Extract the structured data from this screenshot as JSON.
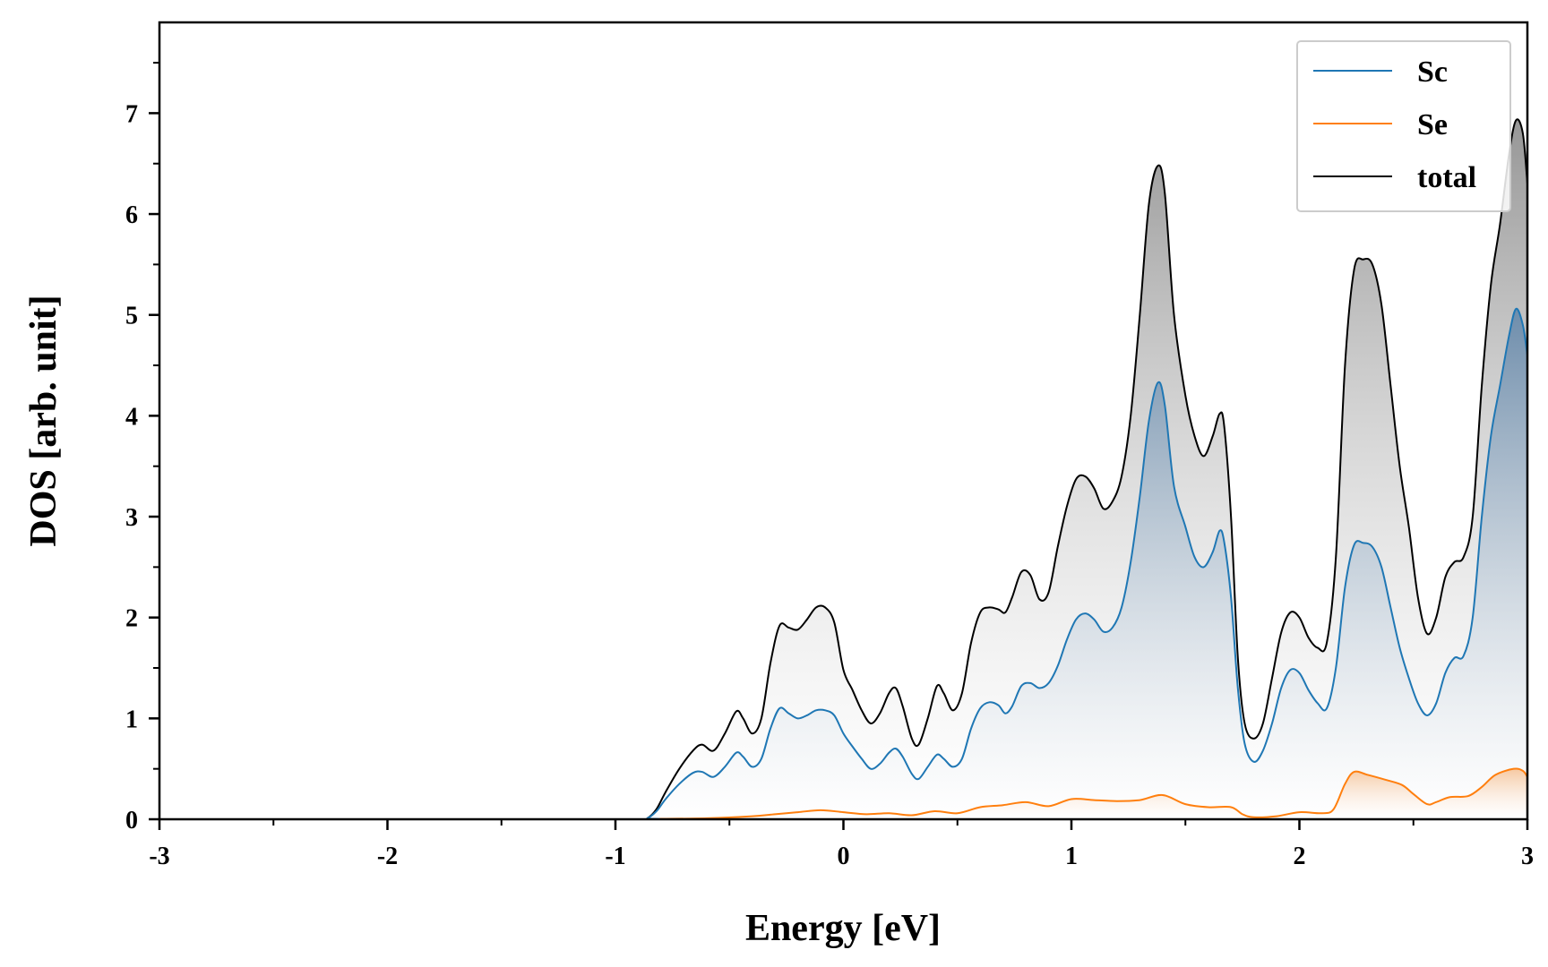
{
  "chart_data": {
    "type": "area",
    "title": "",
    "xlabel": "Energy [eV]",
    "ylabel": "DOS [arb. unit]",
    "xlim": [
      -3,
      3
    ],
    "ylim": [
      0,
      7.9
    ],
    "x_ticks": [
      -3,
      -2,
      -1,
      0,
      1,
      2,
      3
    ],
    "x_tick_labels": [
      "-3",
      "-2",
      "-1",
      "0",
      "1",
      "2",
      "3"
    ],
    "y_ticks": [
      0,
      1,
      2,
      3,
      4,
      5,
      6,
      7
    ],
    "y_tick_labels": [
      "0",
      "1",
      "2",
      "3",
      "4",
      "5",
      "6",
      "7"
    ],
    "grid": false,
    "legend_position": "top-right",
    "series": [
      {
        "name": "Sc",
        "color": "#1f77b4",
        "points": [
          [
            -3,
            0
          ],
          [
            -0.9,
            0
          ],
          [
            -0.86,
            0.01
          ],
          [
            -0.82,
            0.08
          ],
          [
            -0.78,
            0.2
          ],
          [
            -0.72,
            0.35
          ],
          [
            -0.66,
            0.46
          ],
          [
            -0.62,
            0.47
          ],
          [
            -0.57,
            0.42
          ],
          [
            -0.52,
            0.52
          ],
          [
            -0.47,
            0.66
          ],
          [
            -0.44,
            0.62
          ],
          [
            -0.4,
            0.52
          ],
          [
            -0.36,
            0.6
          ],
          [
            -0.32,
            0.9
          ],
          [
            -0.28,
            1.1
          ],
          [
            -0.24,
            1.05
          ],
          [
            -0.2,
            1.0
          ],
          [
            -0.16,
            1.03
          ],
          [
            -0.12,
            1.08
          ],
          [
            -0.08,
            1.08
          ],
          [
            -0.04,
            1.03
          ],
          [
            0,
            0.85
          ],
          [
            0.04,
            0.72
          ],
          [
            0.08,
            0.6
          ],
          [
            0.12,
            0.5
          ],
          [
            0.16,
            0.55
          ],
          [
            0.2,
            0.66
          ],
          [
            0.23,
            0.7
          ],
          [
            0.26,
            0.62
          ],
          [
            0.3,
            0.45
          ],
          [
            0.33,
            0.4
          ],
          [
            0.37,
            0.52
          ],
          [
            0.41,
            0.64
          ],
          [
            0.44,
            0.6
          ],
          [
            0.48,
            0.52
          ],
          [
            0.52,
            0.6
          ],
          [
            0.56,
            0.9
          ],
          [
            0.6,
            1.1
          ],
          [
            0.64,
            1.16
          ],
          [
            0.68,
            1.13
          ],
          [
            0.71,
            1.05
          ],
          [
            0.74,
            1.12
          ],
          [
            0.78,
            1.32
          ],
          [
            0.82,
            1.35
          ],
          [
            0.86,
            1.3
          ],
          [
            0.9,
            1.35
          ],
          [
            0.94,
            1.52
          ],
          [
            0.98,
            1.78
          ],
          [
            1.02,
            1.98
          ],
          [
            1.06,
            2.04
          ],
          [
            1.1,
            1.98
          ],
          [
            1.14,
            1.86
          ],
          [
            1.18,
            1.9
          ],
          [
            1.22,
            2.1
          ],
          [
            1.26,
            2.55
          ],
          [
            1.3,
            3.2
          ],
          [
            1.34,
            3.95
          ],
          [
            1.38,
            4.33
          ],
          [
            1.41,
            4.1
          ],
          [
            1.45,
            3.3
          ],
          [
            1.5,
            2.9
          ],
          [
            1.54,
            2.6
          ],
          [
            1.58,
            2.5
          ],
          [
            1.62,
            2.65
          ],
          [
            1.65,
            2.86
          ],
          [
            1.67,
            2.75
          ],
          [
            1.7,
            2.2
          ],
          [
            1.73,
            1.3
          ],
          [
            1.76,
            0.75
          ],
          [
            1.8,
            0.57
          ],
          [
            1.84,
            0.68
          ],
          [
            1.88,
            0.95
          ],
          [
            1.92,
            1.3
          ],
          [
            1.96,
            1.48
          ],
          [
            2,
            1.45
          ],
          [
            2.04,
            1.28
          ],
          [
            2.08,
            1.15
          ],
          [
            2.12,
            1.1
          ],
          [
            2.16,
            1.5
          ],
          [
            2.2,
            2.3
          ],
          [
            2.24,
            2.72
          ],
          [
            2.28,
            2.74
          ],
          [
            2.32,
            2.7
          ],
          [
            2.36,
            2.5
          ],
          [
            2.4,
            2.1
          ],
          [
            2.44,
            1.7
          ],
          [
            2.48,
            1.4
          ],
          [
            2.52,
            1.15
          ],
          [
            2.56,
            1.03
          ],
          [
            2.6,
            1.15
          ],
          [
            2.64,
            1.45
          ],
          [
            2.68,
            1.6
          ],
          [
            2.72,
            1.62
          ],
          [
            2.76,
            2.0
          ],
          [
            2.8,
            3.0
          ],
          [
            2.84,
            3.8
          ],
          [
            2.88,
            4.3
          ],
          [
            2.92,
            4.8
          ],
          [
            2.95,
            5.06
          ],
          [
            2.98,
            4.9
          ],
          [
            3,
            4.6
          ]
        ]
      },
      {
        "name": "Se",
        "color": "#ff7f0e",
        "points": [
          [
            -3,
            0
          ],
          [
            -0.9,
            0
          ],
          [
            -0.8,
            0.004
          ],
          [
            -0.6,
            0.01
          ],
          [
            -0.4,
            0.03
          ],
          [
            -0.3,
            0.05
          ],
          [
            -0.2,
            0.07
          ],
          [
            -0.1,
            0.09
          ],
          [
            0,
            0.07
          ],
          [
            0.1,
            0.05
          ],
          [
            0.2,
            0.06
          ],
          [
            0.3,
            0.04
          ],
          [
            0.4,
            0.08
          ],
          [
            0.5,
            0.06
          ],
          [
            0.6,
            0.12
          ],
          [
            0.7,
            0.14
          ],
          [
            0.8,
            0.17
          ],
          [
            0.9,
            0.13
          ],
          [
            1,
            0.2
          ],
          [
            1.1,
            0.19
          ],
          [
            1.2,
            0.18
          ],
          [
            1.3,
            0.19
          ],
          [
            1.4,
            0.24
          ],
          [
            1.5,
            0.15
          ],
          [
            1.6,
            0.12
          ],
          [
            1.7,
            0.12
          ],
          [
            1.75,
            0.05
          ],
          [
            1.8,
            0.02
          ],
          [
            1.9,
            0.03
          ],
          [
            2,
            0.07
          ],
          [
            2.1,
            0.06
          ],
          [
            2.15,
            0.1
          ],
          [
            2.2,
            0.35
          ],
          [
            2.24,
            0.47
          ],
          [
            2.3,
            0.44
          ],
          [
            2.38,
            0.39
          ],
          [
            2.45,
            0.34
          ],
          [
            2.5,
            0.25
          ],
          [
            2.56,
            0.15
          ],
          [
            2.6,
            0.17
          ],
          [
            2.66,
            0.22
          ],
          [
            2.74,
            0.23
          ],
          [
            2.8,
            0.32
          ],
          [
            2.86,
            0.44
          ],
          [
            2.94,
            0.5
          ],
          [
            2.98,
            0.48
          ],
          [
            3,
            0.42
          ]
        ]
      },
      {
        "name": "total",
        "color": "#000000",
        "points": [
          [
            -3,
            0
          ],
          [
            -0.9,
            0
          ],
          [
            -0.86,
            0.01
          ],
          [
            -0.82,
            0.1
          ],
          [
            -0.78,
            0.27
          ],
          [
            -0.72,
            0.5
          ],
          [
            -0.66,
            0.68
          ],
          [
            -0.62,
            0.74
          ],
          [
            -0.57,
            0.68
          ],
          [
            -0.52,
            0.85
          ],
          [
            -0.47,
            1.07
          ],
          [
            -0.44,
            1.0
          ],
          [
            -0.4,
            0.85
          ],
          [
            -0.36,
            1.0
          ],
          [
            -0.32,
            1.55
          ],
          [
            -0.28,
            1.92
          ],
          [
            -0.24,
            1.9
          ],
          [
            -0.2,
            1.88
          ],
          [
            -0.16,
            1.98
          ],
          [
            -0.12,
            2.1
          ],
          [
            -0.08,
            2.1
          ],
          [
            -0.04,
            1.95
          ],
          [
            0,
            1.48
          ],
          [
            0.04,
            1.28
          ],
          [
            0.08,
            1.08
          ],
          [
            0.12,
            0.95
          ],
          [
            0.16,
            1.05
          ],
          [
            0.2,
            1.25
          ],
          [
            0.23,
            1.3
          ],
          [
            0.26,
            1.12
          ],
          [
            0.3,
            0.8
          ],
          [
            0.33,
            0.74
          ],
          [
            0.37,
            1.0
          ],
          [
            0.41,
            1.32
          ],
          [
            0.44,
            1.25
          ],
          [
            0.48,
            1.08
          ],
          [
            0.52,
            1.25
          ],
          [
            0.56,
            1.75
          ],
          [
            0.6,
            2.05
          ],
          [
            0.64,
            2.1
          ],
          [
            0.68,
            2.08
          ],
          [
            0.71,
            2.05
          ],
          [
            0.74,
            2.2
          ],
          [
            0.78,
            2.45
          ],
          [
            0.82,
            2.42
          ],
          [
            0.86,
            2.18
          ],
          [
            0.9,
            2.25
          ],
          [
            0.94,
            2.7
          ],
          [
            0.98,
            3.1
          ],
          [
            1.02,
            3.37
          ],
          [
            1.06,
            3.4
          ],
          [
            1.1,
            3.28
          ],
          [
            1.14,
            3.08
          ],
          [
            1.18,
            3.15
          ],
          [
            1.22,
            3.4
          ],
          [
            1.26,
            4.0
          ],
          [
            1.3,
            5.0
          ],
          [
            1.34,
            6.1
          ],
          [
            1.38,
            6.48
          ],
          [
            1.41,
            6.2
          ],
          [
            1.45,
            5.0
          ],
          [
            1.5,
            4.2
          ],
          [
            1.54,
            3.8
          ],
          [
            1.58,
            3.6
          ],
          [
            1.62,
            3.8
          ],
          [
            1.65,
            4.02
          ],
          [
            1.67,
            3.9
          ],
          [
            1.7,
            3.0
          ],
          [
            1.73,
            1.6
          ],
          [
            1.76,
            0.95
          ],
          [
            1.8,
            0.8
          ],
          [
            1.84,
            0.95
          ],
          [
            1.88,
            1.4
          ],
          [
            1.92,
            1.85
          ],
          [
            1.96,
            2.05
          ],
          [
            2,
            2.0
          ],
          [
            2.04,
            1.8
          ],
          [
            2.08,
            1.7
          ],
          [
            2.12,
            1.75
          ],
          [
            2.16,
            2.6
          ],
          [
            2.2,
            4.5
          ],
          [
            2.24,
            5.45
          ],
          [
            2.28,
            5.55
          ],
          [
            2.32,
            5.5
          ],
          [
            2.36,
            5.1
          ],
          [
            2.4,
            4.3
          ],
          [
            2.44,
            3.5
          ],
          [
            2.48,
            2.9
          ],
          [
            2.52,
            2.2
          ],
          [
            2.56,
            1.84
          ],
          [
            2.6,
            2.0
          ],
          [
            2.64,
            2.4
          ],
          [
            2.68,
            2.55
          ],
          [
            2.72,
            2.6
          ],
          [
            2.76,
            3.0
          ],
          [
            2.8,
            4.3
          ],
          [
            2.84,
            5.3
          ],
          [
            2.88,
            5.9
          ],
          [
            2.92,
            6.6
          ],
          [
            2.95,
            6.93
          ],
          [
            2.98,
            6.8
          ],
          [
            3,
            6.3
          ]
        ]
      }
    ]
  }
}
